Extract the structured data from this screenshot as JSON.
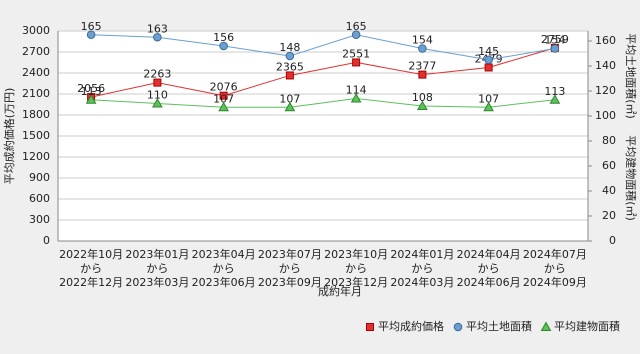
{
  "chart_data": {
    "type": "line",
    "categories": [
      [
        "2022年10月",
        "から",
        "2022年12月"
      ],
      [
        "2023年01月",
        "から",
        "2023年03月"
      ],
      [
        "2023年04月",
        "から",
        "2023年06月"
      ],
      [
        "2023年07月",
        "から",
        "2023年09月"
      ],
      [
        "2023年10月",
        "から",
        "2023年12月"
      ],
      [
        "2024年01月",
        "から",
        "2024年03月"
      ],
      [
        "2024年04月",
        "から",
        "2024年06月"
      ],
      [
        "2024年07月",
        "から",
        "2024年09月"
      ]
    ],
    "x_label": "成約年月",
    "y_label": "平均成約価格(万円)",
    "y2_labels": [
      "平均土地面積(㎡)",
      "平均建物面積(㎡)"
    ],
    "ylim": [
      0,
      3000
    ],
    "yticks": [
      0,
      300,
      600,
      900,
      1200,
      1500,
      1800,
      2100,
      2400,
      2700,
      3000
    ],
    "y2lim": [
      0,
      168
    ],
    "y2ticks": [
      0,
      20,
      40,
      60,
      80,
      100,
      120,
      140,
      160
    ],
    "grid": true,
    "series": [
      {
        "name": "平均成約価格",
        "color": "#e03030",
        "marker": "square",
        "values": [
          2056,
          2263,
          2076,
          2365,
          2551,
          2377,
          2479,
          2759
        ]
      },
      {
        "name": "平均土地面積",
        "color": "#6a9fd0",
        "marker": "circle",
        "axis": "y2",
        "values": [
          165,
          163,
          156,
          148,
          165,
          154,
          145,
          154
        ]
      },
      {
        "name": "平均建物面積",
        "color": "#5cc05c",
        "marker": "triangle",
        "axis": "y2",
        "values": [
          113,
          110,
          107,
          107,
          114,
          108,
          107,
          113
        ]
      }
    ]
  }
}
